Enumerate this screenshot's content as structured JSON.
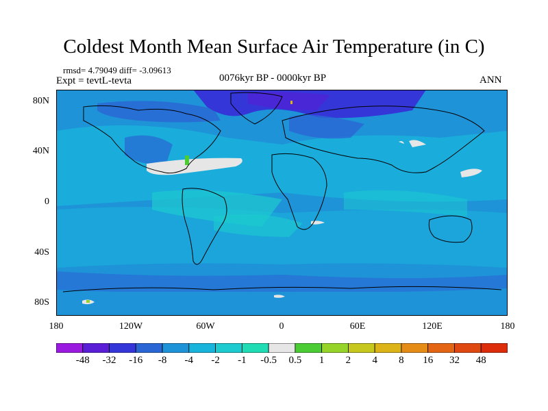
{
  "title": "Coldest Month Mean Surface Air Temperature (in C)",
  "stats": "rmsd= 4.79049 diff= -3.09613",
  "experiment": "Expt = tevtL-tevta",
  "subtitle": "0076kyr BP - 0000kyr BP",
  "season": "ANN",
  "map": {
    "projection": "cylindrical equidistant",
    "lat_labels": [
      "80N",
      "40N",
      "0",
      "40S",
      "80S"
    ],
    "lat_values": [
      80,
      40,
      0,
      -40,
      -80
    ],
    "lon_labels": [
      "180",
      "120W",
      "60W",
      "0",
      "60E",
      "120E",
      "180"
    ],
    "lon_values": [
      -180,
      -120,
      -60,
      0,
      60,
      120,
      180
    ]
  },
  "colorbar": {
    "labels": [
      "-48",
      "-32",
      "-16",
      "-8",
      "-4",
      "-2",
      "-1",
      "-0.5",
      "0.5",
      "1",
      "2",
      "4",
      "8",
      "16",
      "32",
      "48"
    ],
    "colors": [
      "#9a1ae0",
      "#5a1ed6",
      "#3436d8",
      "#2a66d4",
      "#1e93d8",
      "#19b4dc",
      "#1ccbd0",
      "#20dcb4",
      "#e6e6e6",
      "#4ccc34",
      "#96d42a",
      "#c6c81e",
      "#dcb418",
      "#e48c16",
      "#e46614",
      "#e04812",
      "#dc2c0c"
    ]
  }
}
